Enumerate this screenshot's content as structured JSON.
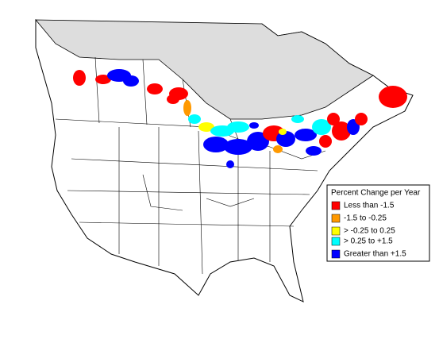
{
  "legend": {
    "title": "Percent Change per Year",
    "items": [
      {
        "label": "Less than -1.5",
        "color": "#ff0000"
      },
      {
        "label": "-1.5 to -0.25",
        "color": "#ff9900"
      },
      {
        "label": "> -0.25 to 0.25",
        "color": "#ffff00"
      },
      {
        "label": "> 0.25 to +1.5",
        "color": "#00ffff"
      },
      {
        "label": "Greater than +1.5",
        "color": "#0000ff"
      }
    ]
  }
}
